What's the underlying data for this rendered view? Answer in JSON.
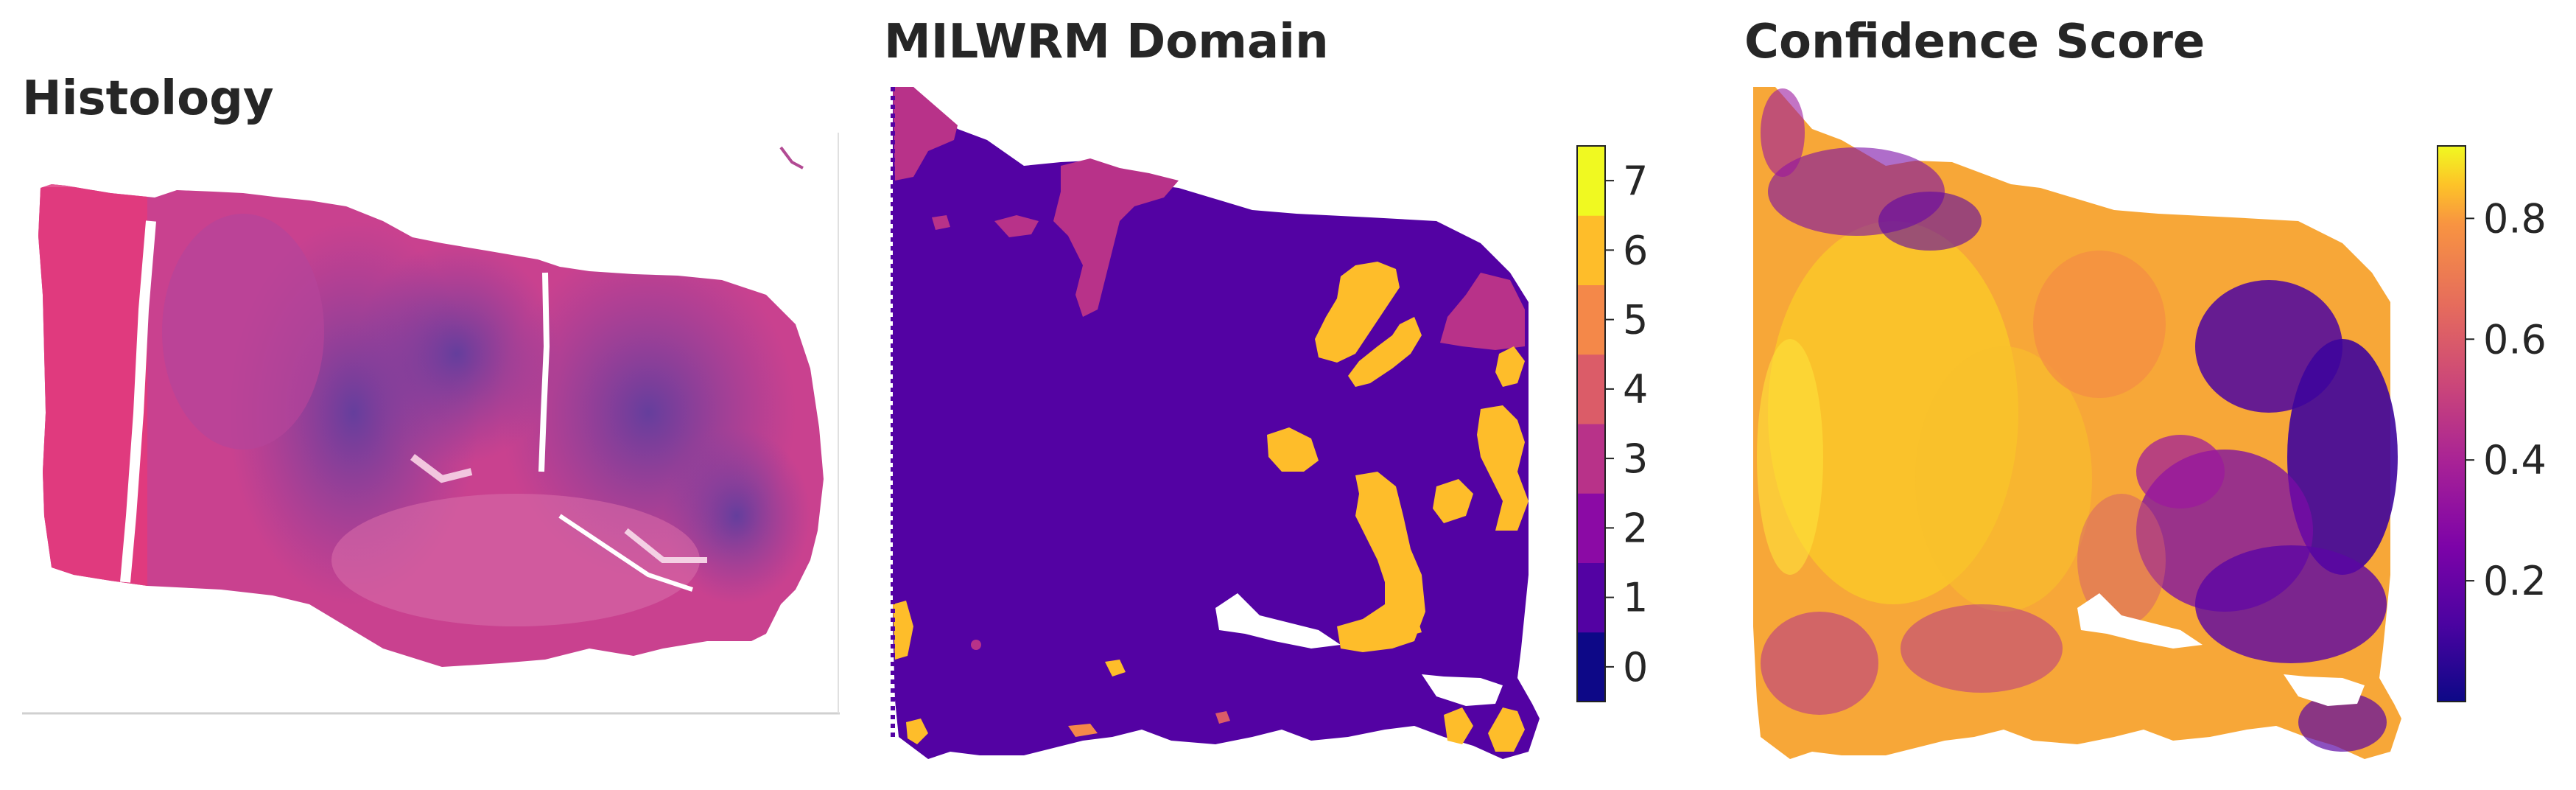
{
  "chart_data": [
    {
      "type": "image",
      "title": "Histology",
      "description_colors": [
        "#d6327a",
        "#b13a9a",
        "#6a4aa8",
        "#e8b5d6"
      ]
    },
    {
      "type": "heatmap",
      "title": "MILWRM Domain",
      "colorbar": {
        "kind": "discrete",
        "ticks": [
          "0",
          "1",
          "2",
          "3",
          "4",
          "5",
          "6",
          "7"
        ],
        "range": [
          -0.5,
          7.5
        ],
        "colors": [
          "#0d0887",
          "#5302a3",
          "#8b0aa5",
          "#b83289",
          "#db5c68",
          "#f48849",
          "#febd2a",
          "#f0f921"
        ]
      },
      "domain_fractions": {
        "1": 0.78,
        "3": 0.08,
        "6": 0.13,
        "5": 0.01
      }
    },
    {
      "type": "heatmap",
      "title": "Confidence Score",
      "colorbar": {
        "kind": "continuous",
        "ticks": [
          "0.2",
          "0.4",
          "0.6",
          "0.8"
        ],
        "tick_values": [
          0.2,
          0.4,
          0.6,
          0.8
        ],
        "range": [
          0.0,
          0.92
        ],
        "colormap": "plasma"
      }
    }
  ]
}
